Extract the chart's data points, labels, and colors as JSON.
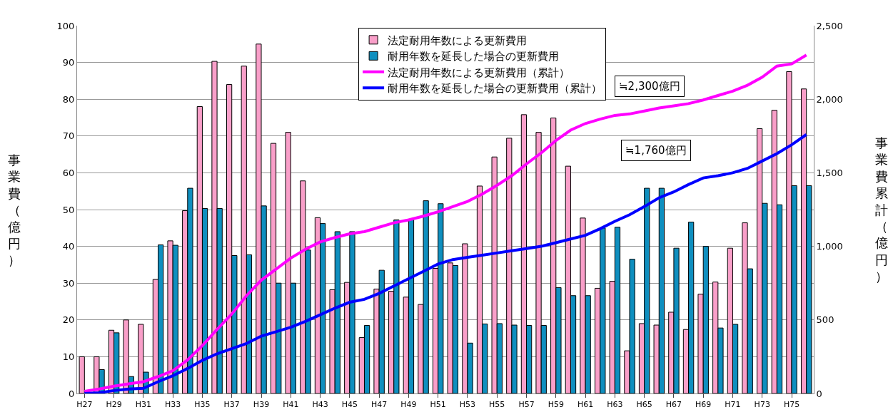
{
  "chart_data": {
    "type": "bar",
    "xlabel": null,
    "ylabel": "事業費（億円）",
    "y2label": "事業費累計（億円）",
    "categories": [
      "H27",
      null,
      "H29",
      null,
      "H31",
      null,
      "H33",
      null,
      "H35",
      null,
      "H37",
      null,
      "H39",
      null,
      "H41",
      null,
      "H43",
      null,
      "H45",
      null,
      "H47",
      null,
      "H49",
      null,
      "H51",
      null,
      "H53",
      null,
      "H55",
      null,
      "H57",
      null,
      "H59",
      null,
      "H61",
      null,
      "H63",
      null,
      "H65",
      null,
      "H67",
      null,
      "H69",
      null,
      "H71",
      null,
      "H73",
      null,
      "H75",
      null
    ],
    "series": [
      {
        "name": "法定耐用年数による更新費用",
        "color": "#f99fc9",
        "values": [
          10,
          10,
          17.2,
          20,
          18.8,
          31,
          41.5,
          49.7,
          78,
          90.3,
          84,
          89,
          95,
          68,
          71,
          57.8,
          47.8,
          28.2,
          30.2,
          15.2,
          28.4,
          27.8,
          26.2,
          24.2,
          34,
          35.5,
          40.7,
          56.4,
          64.3,
          69.4,
          75.8,
          71,
          74.9,
          61.8,
          47.7,
          28.6,
          30.5,
          11.6,
          19,
          18.6,
          22.1,
          17.4,
          27,
          30.3,
          39.5,
          46.4,
          72,
          77,
          87.5,
          82.8
        ]
      },
      {
        "name": "耐用年数を延長した場合の更新費用",
        "color": "#0f8fbf",
        "values": [
          null,
          6.5,
          16.5,
          4.6,
          5.8,
          40.4,
          40.3,
          55.8,
          50.3,
          50.3,
          37.5,
          37.7,
          51,
          30,
          30,
          39,
          46.2,
          44,
          44,
          18.5,
          33.5,
          47.2,
          47.2,
          52.4,
          51.6,
          34.8,
          13.7,
          18.9,
          19,
          18.6,
          18.5,
          18.5,
          28.8,
          26.6,
          26.6,
          45,
          45.2,
          36.5,
          55.8,
          55.8,
          39.5,
          46.6,
          40,
          17.8,
          18.8,
          33.9,
          51.7,
          51.3,
          56.5,
          56.5
        ]
      },
      {
        "name": "法定耐用年数による更新費用（累計）",
        "type": "line",
        "axis": "y2",
        "color": "#ff00ff",
        "values": [
          15,
          30,
          50,
          65,
          80,
          115,
          155,
          228,
          325,
          435,
          540,
          665,
          770,
          845,
          920,
          980,
          1030,
          1060,
          1085,
          1100,
          1130,
          1160,
          1180,
          1205,
          1235,
          1270,
          1305,
          1355,
          1415,
          1480,
          1560,
          1635,
          1720,
          1790,
          1835,
          1865,
          1890,
          1900,
          1920,
          1940,
          1955,
          1970,
          1995,
          2025,
          2055,
          2095,
          2150,
          2225,
          2240,
          2300
        ]
      },
      {
        "name": "耐用年数を延長した場合の更新費用（累計）",
        "type": "line",
        "axis": "y2",
        "color": "#0000ff",
        "values": [
          0,
          5,
          20,
          30,
          35,
          80,
          120,
          170,
          225,
          270,
          305,
          340,
          390,
          420,
          450,
          490,
          535,
          580,
          620,
          640,
          680,
          730,
          780,
          830,
          880,
          910,
          925,
          940,
          955,
          970,
          985,
          1000,
          1025,
          1050,
          1075,
          1120,
          1170,
          1215,
          1270,
          1330,
          1370,
          1420,
          1465,
          1480,
          1500,
          1530,
          1580,
          1630,
          1690,
          1760
        ]
      }
    ],
    "ylim": [
      0,
      100
    ],
    "yticks": [
      0,
      10,
      20,
      30,
      40,
      50,
      60,
      70,
      80,
      90,
      100
    ],
    "y2lim": [
      0,
      2500
    ],
    "y2ticks": [
      0,
      500,
      {
        "value": 1000,
        "label": "1,000"
      },
      {
        "value": 1500,
        "label": "1,500"
      },
      {
        "value": 2000,
        "label": "2,000"
      },
      {
        "value": 2500,
        "label": "2,500"
      }
    ],
    "annotations": [
      "≒2,300億円",
      "≒1,760億円"
    ],
    "grid": "y",
    "legend": "top",
    "marker": "none",
    "line_style": "solid"
  }
}
